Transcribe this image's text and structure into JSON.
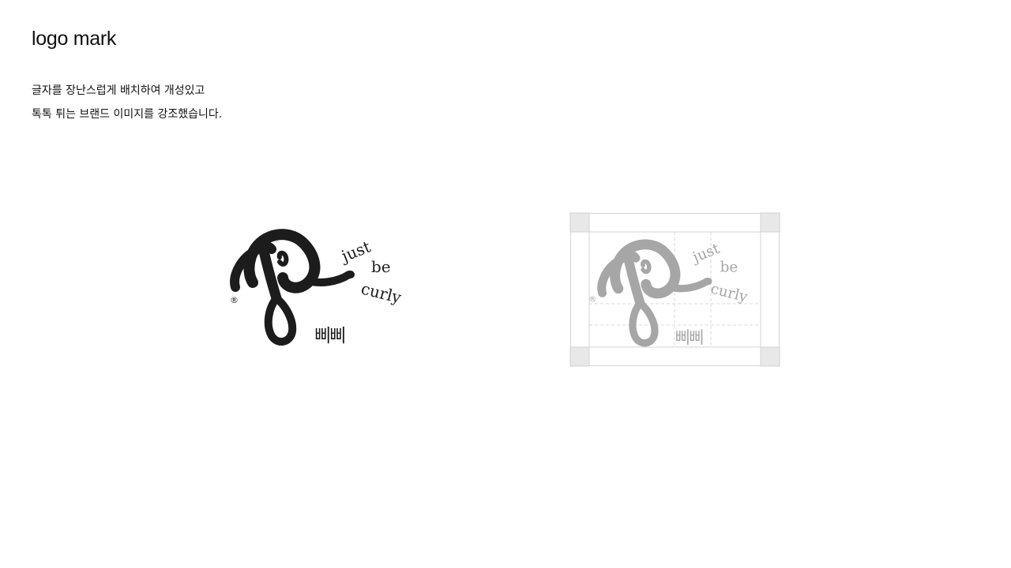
{
  "header": {
    "title": "logo mark"
  },
  "description": {
    "line1": "글자를 장난스럽게 배치하여 개성있고",
    "line2": "톡톡 튀는 브랜드 이미지를 강조했습니다."
  },
  "logo": {
    "tagline_word1": "just",
    "tagline_word2": "be",
    "tagline_word3": "curly",
    "korean_wordmark": "삐삐",
    "registered_mark": "®",
    "primary_color": "#1c1c1c",
    "guide_color": "#a6a6a6"
  }
}
